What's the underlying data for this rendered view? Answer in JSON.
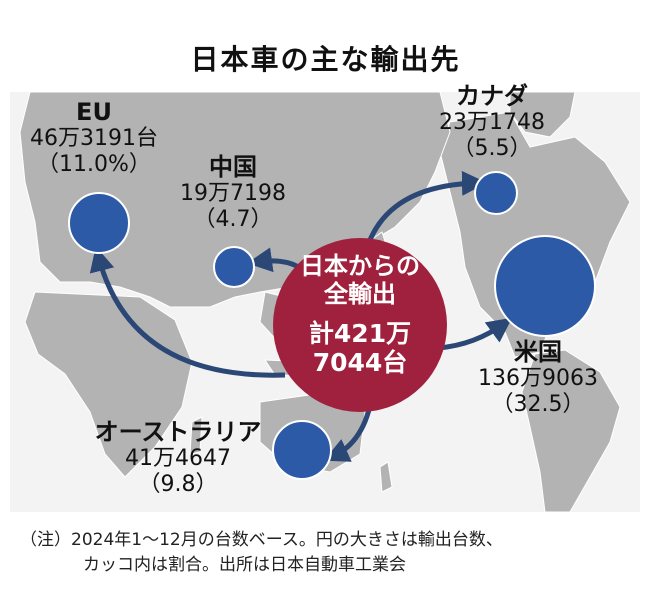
{
  "title": "日本車の主な輸出先",
  "center": {
    "line1": "日本からの",
    "line2": "全輸出",
    "line3": "計421万",
    "line4": "7044台"
  },
  "destinations": [
    {
      "key": "eu",
      "name": "EU",
      "units": "46万3191台",
      "share": "（11.0%）",
      "units_value": 463191,
      "share_value": 11.0
    },
    {
      "key": "china",
      "name": "中国",
      "units": "19万7198",
      "share": "（4.7）",
      "units_value": 197198,
      "share_value": 4.7
    },
    {
      "key": "canada",
      "name": "カナダ",
      "units": "23万1748",
      "share": "（5.5）",
      "units_value": 231748,
      "share_value": 5.5
    },
    {
      "key": "usa",
      "name": "米国",
      "units": "136万9063",
      "share": "（32.5）",
      "units_value": 1369063,
      "share_value": 32.5
    },
    {
      "key": "australia",
      "name": "オーストラリア",
      "units": "41万4647",
      "share": "（9.8）",
      "units_value": 414647,
      "share_value": 9.8
    }
  ],
  "total_units_value": 4217044,
  "note": {
    "line1": "（注）2024年1～12月の台数ベース。円の大きさは輸出台数、",
    "line2": "カッコ内は割合。出所は日本自動車工業会"
  },
  "colors": {
    "bubble": "#2d5aa7",
    "center": "#a0213e",
    "arrow": "#2a4775",
    "land": "#b3b3b3",
    "sea": "#f3f3f3"
  }
}
